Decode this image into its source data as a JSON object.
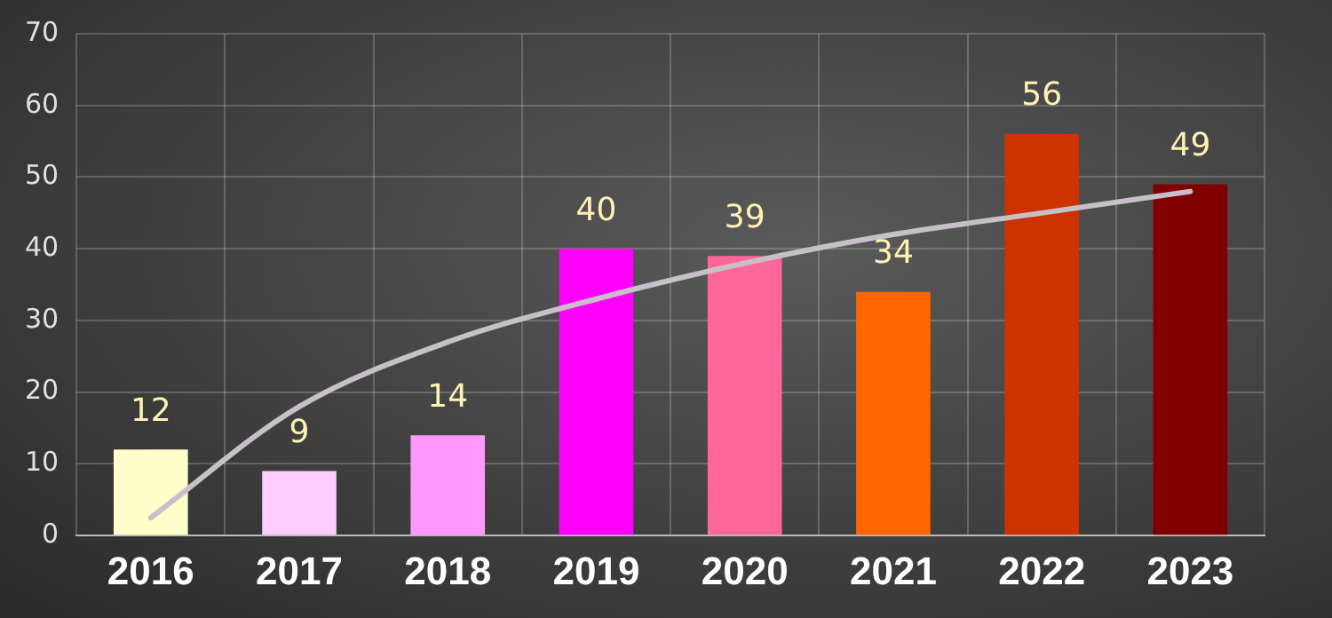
{
  "chart_data": {
    "type": "bar",
    "categories": [
      "2016",
      "2017",
      "2018",
      "2019",
      "2020",
      "2021",
      "2022",
      "2023"
    ],
    "series": [
      {
        "values": [
          12,
          9,
          14,
          40,
          39,
          34,
          56,
          49
        ],
        "colors": [
          "#ffffcc",
          "#ffccff",
          "#ff99ff",
          "#ff00ff",
          "#ff6699",
          "#ff6600",
          "#cc3300",
          "#800000"
        ],
        "data_labels": true
      },
      {
        "type": "line",
        "values": [
          2.5,
          18,
          27,
          33,
          38,
          42,
          45,
          48
        ],
        "color": "#c8c0c8",
        "marker": "none",
        "line_style": "solid"
      }
    ],
    "ylim": [
      0,
      70
    ],
    "yticks": [
      0,
      10,
      20,
      30,
      40,
      50,
      60,
      70
    ],
    "grid": true,
    "legend": false
  }
}
